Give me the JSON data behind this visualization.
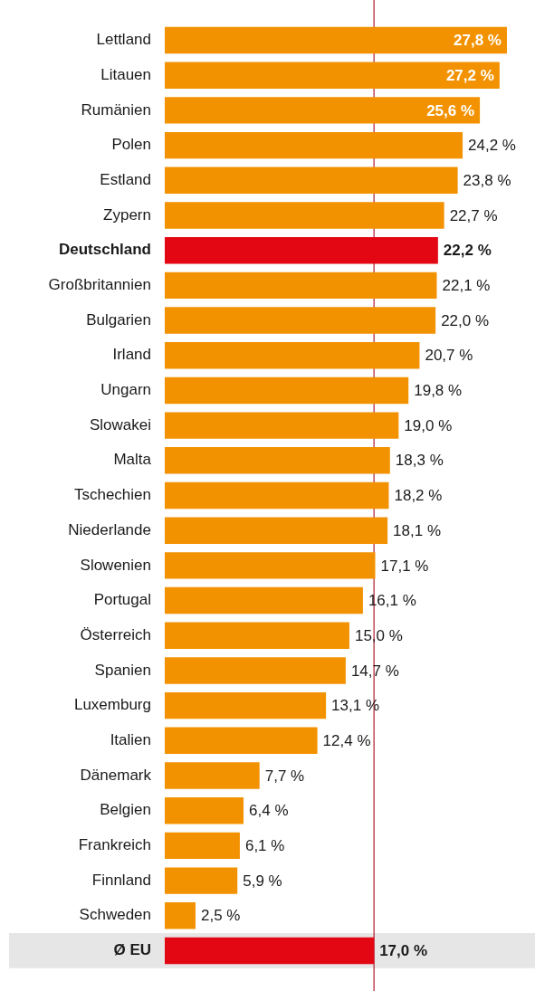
{
  "chart_data": {
    "type": "bar",
    "orientation": "horizontal",
    "categories": [
      "Lettland",
      "Litauen",
      "Rumänien",
      "Polen",
      "Estland",
      "Zypern",
      "Deutschland",
      "Großbritannien",
      "Bulgarien",
      "Irland",
      "Ungarn",
      "Slowakei",
      "Malta",
      "Tschechien",
      "Niederlande",
      "Slowenien",
      "Portugal",
      "Österreich",
      "Spanien",
      "Luxemburg",
      "Italien",
      "Dänemark",
      "Belgien",
      "Frankreich",
      "Finnland",
      "Schweden",
      "Ø EU"
    ],
    "values": [
      27.8,
      27.2,
      25.6,
      24.2,
      23.8,
      22.7,
      22.2,
      22.1,
      22.0,
      20.7,
      19.8,
      19.0,
      18.3,
      18.2,
      18.1,
      17.1,
      16.1,
      15.0,
      14.7,
      13.1,
      12.4,
      7.7,
      6.4,
      6.1,
      5.9,
      2.5,
      17.0
    ],
    "colors": [
      "#f39200",
      "#f39200",
      "#f39200",
      "#f39200",
      "#f39200",
      "#f39200",
      "#e30613",
      "#f39200",
      "#f39200",
      "#f39200",
      "#f39200",
      "#f39200",
      "#f39200",
      "#f39200",
      "#f39200",
      "#f39200",
      "#f39200",
      "#f39200",
      "#f39200",
      "#f39200",
      "#f39200",
      "#f39200",
      "#f39200",
      "#f39200",
      "#f39200",
      "#f39200",
      "#e30613"
    ],
    "value_labels": [
      "27,8 %",
      "27,2 %",
      "25,6 %",
      "24,2 %",
      "23,8 %",
      "22,7 %",
      "22,2 %",
      "22,1 %",
      "22,0 %",
      "20,7 %",
      "19,8 %",
      "19,0 %",
      "18,3 %",
      "18,2 %",
      "18,1 %",
      "17,1 %",
      "16,1 %",
      "15,0 %",
      "14,7 %",
      "13,1 %",
      "12,4 %",
      "7,7 %",
      "6,4 %",
      "6,1 %",
      "5,9 %",
      "2,5 %",
      "17,0 %"
    ],
    "ref_lines": [
      {
        "axis": "x",
        "value": 17.0,
        "color": "#b01c2e"
      }
    ],
    "bands": [
      {
        "axis": "y",
        "from": "Ø EU",
        "to": "Ø EU",
        "color": "#e6e6e6"
      }
    ],
    "legend": false,
    "tick_labels": "y"
  }
}
